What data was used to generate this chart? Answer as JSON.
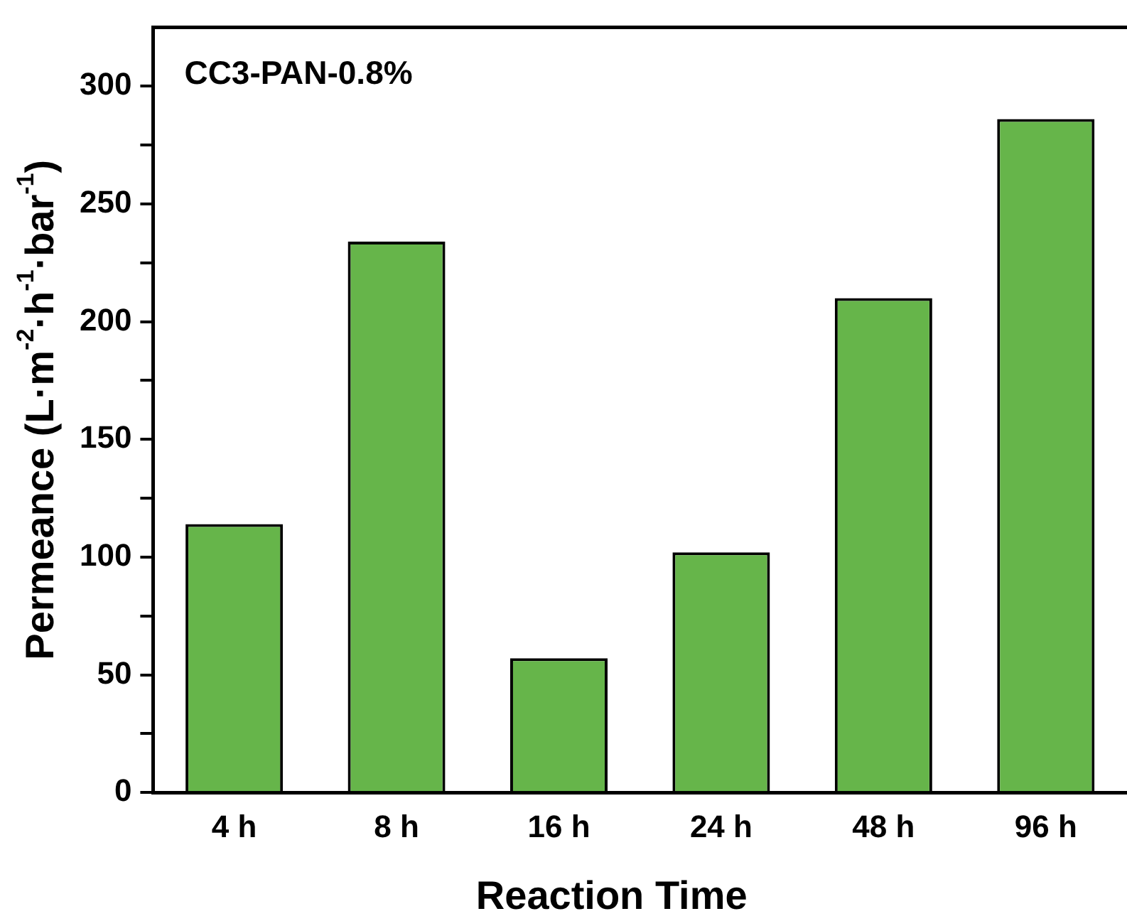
{
  "chart_data": {
    "type": "bar",
    "title": "CC3-PAN-0.8%",
    "xlabel": "Reaction Time",
    "ylabel": "Permeance (L·m$^{-2}$·h$^{-1}$·bar$^{-1}$)",
    "categories": [
      "4 h",
      "8 h",
      "16 h",
      "24 h",
      "48 h",
      "96 h"
    ],
    "values": [
      114,
      234,
      57,
      102,
      210,
      286
    ],
    "color": "#66b54a",
    "ylim": [
      0,
      325
    ],
    "yticks": [
      0,
      {
        "value": 25,
        "label": null
      },
      50,
      {
        "value": 75,
        "label": null
      },
      100,
      {
        "value": 125,
        "label": null
      },
      150,
      {
        "value": 175,
        "label": null
      },
      200,
      {
        "value": 225,
        "label": null
      },
      250,
      {
        "value": 275,
        "label": null
      },
      300
    ],
    "grid": false,
    "legend": false
  }
}
